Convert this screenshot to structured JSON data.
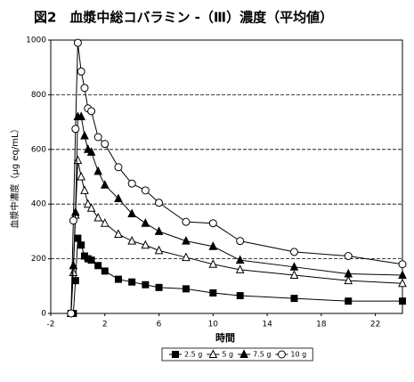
{
  "chart_data": {
    "type": "line",
    "title": "図2　血漿中総コバラミン -（Ⅲ）濃度（平均値）",
    "x_label": "時間",
    "y_label": "血漿中濃度（μg eq/mL）",
    "x": [
      -0.5,
      -0.33,
      -0.17,
      0,
      0.25,
      0.5,
      0.75,
      1,
      1.5,
      2,
      3,
      4,
      5,
      6,
      8,
      10,
      12,
      16,
      20,
      24
    ],
    "series": [
      {
        "name": "2.5 g",
        "color": "#000000",
        "marker": "square",
        "filled": true,
        "values": [
          0,
          0,
          120,
          275,
          250,
          210,
          200,
          195,
          175,
          155,
          125,
          115,
          105,
          95,
          90,
          75,
          65,
          55,
          45,
          45
        ]
      },
      {
        "name": "5 g",
        "color": "#000000",
        "marker": "triangle",
        "filled": false,
        "values": [
          0,
          150,
          360,
          560,
          500,
          450,
          400,
          385,
          350,
          330,
          290,
          265,
          250,
          230,
          205,
          180,
          160,
          140,
          120,
          110
        ]
      },
      {
        "name": "7.5 g",
        "color": "#000000",
        "marker": "triangle",
        "filled": true,
        "values": [
          0,
          175,
          370,
          720,
          720,
          650,
          600,
          590,
          520,
          470,
          420,
          365,
          330,
          300,
          265,
          245,
          195,
          170,
          145,
          140
        ]
      },
      {
        "name": "10 g",
        "color": "#000000",
        "marker": "circle",
        "filled": false,
        "values": [
          0,
          340,
          675,
          990,
          885,
          825,
          750,
          740,
          645,
          620,
          535,
          475,
          450,
          405,
          335,
          330,
          265,
          225,
          210,
          180
        ]
      }
    ],
    "xlim": [
      -2,
      24
    ],
    "ylim": [
      0,
      1000
    ],
    "xticks": [
      -2,
      2,
      6,
      10,
      14,
      18,
      22
    ],
    "yticks": [
      0,
      200,
      400,
      600,
      800,
      1000
    ],
    "grid": true,
    "legend": "bottom"
  }
}
